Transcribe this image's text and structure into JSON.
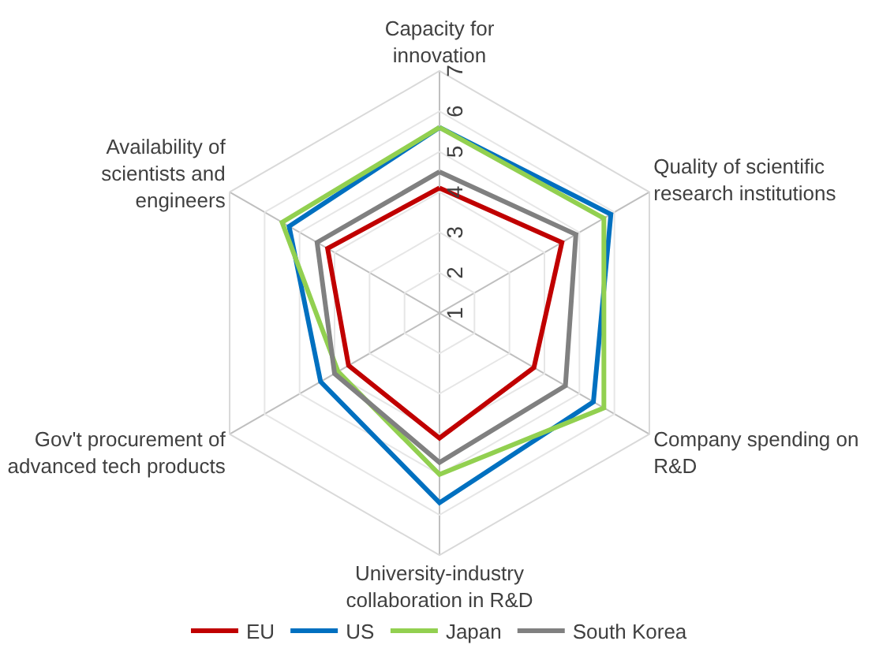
{
  "chart_data": {
    "type": "radar",
    "categories": [
      "Capacity for innovation",
      "Quality of scientific research institutions",
      "Company spending on R&D",
      "University-industry collaboration in R&D",
      "Gov't procurement of advanced tech products",
      "Availability of scientists and engineers"
    ],
    "series": [
      {
        "name": "EU",
        "color": "#c00000",
        "values": [
          4.1,
          4.5,
          3.7,
          4.1,
          3.6,
          4.2
        ]
      },
      {
        "name": "US",
        "color": "#0070c0",
        "values": [
          5.6,
          5.9,
          5.4,
          5.7,
          4.4,
          5.3
        ]
      },
      {
        "name": "Japan",
        "color": "#92d050",
        "values": [
          5.6,
          5.7,
          5.7,
          5.0,
          3.9,
          5.5
        ]
      },
      {
        "name": "South Korea",
        "color": "#808080",
        "values": [
          4.5,
          4.9,
          4.6,
          4.7,
          4.0,
          4.5
        ]
      }
    ],
    "ylim": [
      1,
      7
    ],
    "yticks": [
      1,
      2,
      3,
      4,
      5,
      6,
      7
    ],
    "grid": true,
    "legend": "bottom",
    "marker": "none",
    "line_style": "solid"
  }
}
